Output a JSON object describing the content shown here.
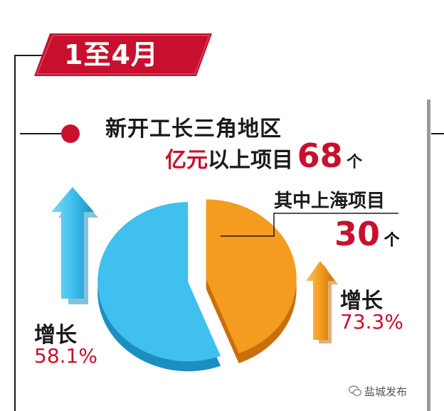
{
  "banner": {
    "text": "1至4月",
    "color": "#c8102e"
  },
  "headline": {
    "line1": "新开工长三角地区",
    "line2_red": "亿元",
    "line2_black": "以上项目",
    "total_value": "68",
    "unit": "个"
  },
  "sub": {
    "title": "其中上海项目",
    "value": "30",
    "unit": "个"
  },
  "growth_blue": {
    "label": "增长",
    "value": "58.1%"
  },
  "growth_orange": {
    "label": "增长",
    "value": "73.3%"
  },
  "watermark": {
    "text": "盐城发布",
    "icon": "wechat-icon"
  },
  "colors": {
    "accent": "#c8102e",
    "blue": "#3fc0ee",
    "orange": "#f39c1f"
  },
  "chart_data": {
    "type": "pie",
    "slices": [
      {
        "label": "其中上海项目",
        "value": 30,
        "color": "#f39c1f"
      },
      {
        "label": "",
        "value": 38,
        "color": "#3fc0ee"
      }
    ],
    "total": 68,
    "unit": "个"
  }
}
